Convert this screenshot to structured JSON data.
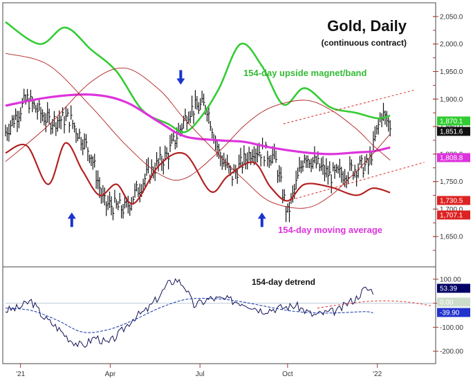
{
  "chart_data": [
    {
      "type": "line",
      "panel": "price",
      "title": "Gold, Daily",
      "subtitle": "(continuous contract)",
      "y_scale": [
        1600,
        2070
      ],
      "y_ticks": [
        "2,050.0",
        "2,000.0",
        "1,950.0",
        "1,900.0",
        "1,850.0",
        "1,800.0",
        "1,750.0",
        "1,700.0",
        "1,650.0"
      ],
      "y_tick_values": [
        2050,
        2000,
        1950,
        1900,
        1850,
        1800,
        1750,
        1700,
        1650
      ],
      "annotations": {
        "upper_band": "154-day upside magnet/band",
        "moving_average": "154-day moving average"
      },
      "series": [
        {
          "name": "154-day upside magnet/band",
          "color": "#33cc33",
          "x": [
            0.0,
            0.08,
            0.14,
            0.2,
            0.26,
            0.32,
            0.38,
            0.42,
            0.46,
            0.5,
            0.55,
            0.6,
            0.65,
            0.7,
            0.76,
            0.82,
            0.87,
            0.9
          ],
          "y": [
            2040,
            2000,
            2030,
            1990,
            1950,
            1880,
            1855,
            1840,
            1870,
            1920,
            2000,
            1960,
            1890,
            1920,
            1885,
            1875,
            1865,
            1870
          ]
        },
        {
          "name": "154-day moving average",
          "color": "#dd33dd",
          "x": [
            0.0,
            0.1,
            0.2,
            0.28,
            0.36,
            0.42,
            0.5,
            0.56,
            0.62,
            0.7,
            0.76,
            0.82,
            0.86,
            0.9
          ],
          "y": [
            1888,
            1903,
            1908,
            1895,
            1858,
            1832,
            1825,
            1822,
            1812,
            1803,
            1800,
            1803,
            1805,
            1812
          ]
        },
        {
          "name": "cycle",
          "color": "#b22222",
          "x": [
            0.0,
            0.05,
            0.1,
            0.14,
            0.18,
            0.22,
            0.26,
            0.3,
            0.36,
            0.42,
            0.48,
            0.52,
            0.58,
            0.62,
            0.66,
            0.7,
            0.76,
            0.82,
            0.86,
            0.9
          ],
          "y": [
            1802,
            1815,
            1745,
            1820,
            1770,
            1725,
            1745,
            1710,
            1780,
            1800,
            1732,
            1760,
            1785,
            1740,
            1715,
            1745,
            1740,
            1725,
            1738,
            1730
          ]
        }
      ],
      "price_anchor_points": {
        "x": [
          0.0,
          0.05,
          0.1,
          0.15,
          0.2,
          0.23,
          0.28,
          0.33,
          0.38,
          0.43,
          0.47,
          0.5,
          0.53,
          0.58,
          0.63,
          0.66,
          0.7,
          0.73,
          0.76,
          0.79,
          0.82,
          0.85,
          0.88,
          0.9
        ],
        "y": [
          1840,
          1900,
          1860,
          1865,
          1800,
          1710,
          1700,
          1760,
          1800,
          1880,
          1890,
          1800,
          1760,
          1810,
          1795,
          1690,
          1800,
          1780,
          1760,
          1765,
          1775,
          1780,
          1875,
          1852
        ]
      },
      "value_labels": [
        {
          "label": "1,870.1",
          "bg": "#33cc33",
          "fg": "#ffffff",
          "value": 1870.1
        },
        {
          "label": "1,851.6",
          "bg": "#111111",
          "fg": "#ffffff",
          "value": 1851.6
        },
        {
          "label": "1,808.8",
          "bg": "#dd33dd",
          "fg": "#ffffff",
          "value": 1808.8
        },
        {
          "label": "1,730.5",
          "bg": "#dd2222",
          "fg": "#ffffff",
          "value": 1730.5
        },
        {
          "label": "1,707.1",
          "bg": "#dd2222",
          "fg": "#ffffff",
          "value": 1707.1
        }
      ],
      "arrows": [
        {
          "direction": "up",
          "x": 0.155,
          "y": 1680
        },
        {
          "direction": "down",
          "x": 0.41,
          "y": 1940
        },
        {
          "direction": "up",
          "x": 0.6,
          "y": 1680
        }
      ]
    },
    {
      "type": "line",
      "panel": "detrend",
      "title": "154-day detrend",
      "y_scale": [
        -240,
        140
      ],
      "y_ticks": [
        "100.00",
        "0.00",
        "-100.00",
        "-200.00"
      ],
      "y_tick_values": [
        100,
        0,
        -100,
        -200
      ],
      "x_ticks": [
        "'21",
        "Apr",
        "Jul",
        "Oct",
        "'22"
      ],
      "x_tick_fractions": [
        0.035,
        0.245,
        0.455,
        0.66,
        0.87
      ],
      "value_labels": [
        {
          "label": "53.39",
          "bg": "#000066",
          "fg": "#ffffff",
          "value": 53.39
        },
        {
          "label": "0.00",
          "bg": "#ccddcc",
          "fg": "#ffffff",
          "value": 0.0
        },
        {
          "label": "-39.90",
          "bg": "#2233cc",
          "fg": "#ffffff",
          "value": -39.9
        }
      ],
      "series": [
        {
          "name": "154-day detrend",
          "color": "#111155",
          "x": [
            0.0,
            0.03,
            0.06,
            0.09,
            0.12,
            0.15,
            0.18,
            0.21,
            0.24,
            0.27,
            0.3,
            0.33,
            0.36,
            0.38,
            0.4,
            0.42,
            0.44,
            0.48,
            0.52,
            0.56,
            0.6,
            0.64,
            0.68,
            0.72,
            0.75,
            0.78,
            0.8,
            0.82,
            0.84,
            0.86
          ],
          "y": [
            -30,
            -20,
            10,
            -60,
            -100,
            -150,
            -180,
            -140,
            -170,
            -120,
            -60,
            -30,
            30,
            80,
            100,
            70,
            -10,
            20,
            15,
            0,
            -30,
            -20,
            -10,
            -50,
            -40,
            -30,
            0,
            20,
            60,
            53
          ]
        },
        {
          "name": "detrend cycle",
          "color": "#1133aa",
          "x": [
            0.0,
            0.06,
            0.12,
            0.18,
            0.24,
            0.3,
            0.36,
            0.42,
            0.48,
            0.54,
            0.6,
            0.66,
            0.72,
            0.78,
            0.84,
            0.86
          ],
          "y": [
            -20,
            -30,
            -70,
            -120,
            -110,
            -70,
            -20,
            15,
            20,
            10,
            -10,
            -30,
            -40,
            -40,
            -35,
            -40
          ]
        }
      ]
    }
  ]
}
